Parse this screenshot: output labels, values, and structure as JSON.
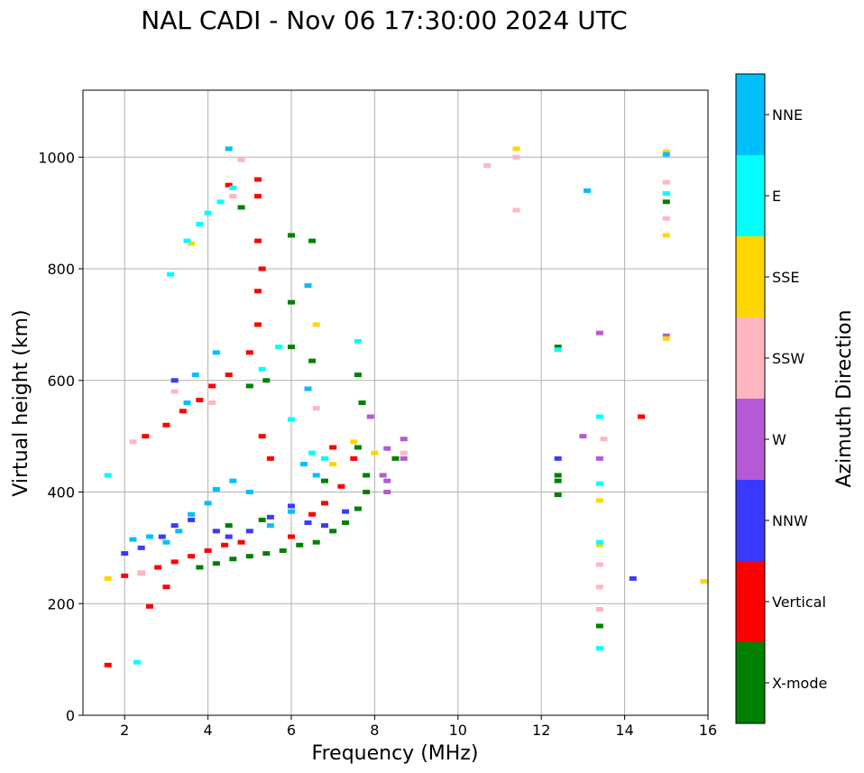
{
  "chart_data": {
    "type": "scatter",
    "title": "NAL CADI - Nov 06 17:30:00 2024 UTC",
    "xlabel": "Frequency (MHz)",
    "ylabel": "Virtual height (km)",
    "xlim": [
      1,
      16
    ],
    "ylim": [
      0,
      1120
    ],
    "xticks": [
      2,
      4,
      6,
      8,
      10,
      12,
      14,
      16
    ],
    "yticks": [
      0,
      200,
      400,
      600,
      800,
      1000
    ],
    "grid": true,
    "colorbar": {
      "label": "Azimuth Direction",
      "categories": [
        {
          "name": "X-mode",
          "color": "#008000"
        },
        {
          "name": "Vertical",
          "color": "#ff0000"
        },
        {
          "name": "NNW",
          "color": "#3a3aff"
        },
        {
          "name": "W",
          "color": "#b45ad6"
        },
        {
          "name": "SSW",
          "color": "#ffb6c1"
        },
        {
          "name": "SSE",
          "color": "#ffd700"
        },
        {
          "name": "E",
          "color": "#00ffff"
        },
        {
          "name": "NNE",
          "color": "#00bfff"
        }
      ]
    },
    "series": [
      {
        "name": "X-mode",
        "points": [
          [
            3.8,
            265
          ],
          [
            4.2,
            272
          ],
          [
            4.6,
            280
          ],
          [
            5.0,
            285
          ],
          [
            5.4,
            290
          ],
          [
            5.8,
            295
          ],
          [
            6.2,
            305
          ],
          [
            6.6,
            310
          ],
          [
            7.0,
            330
          ],
          [
            7.3,
            345
          ],
          [
            7.6,
            370
          ],
          [
            7.8,
            400
          ],
          [
            7.8,
            430
          ],
          [
            7.6,
            480
          ],
          [
            7.7,
            560
          ],
          [
            7.6,
            610
          ],
          [
            6.5,
            635
          ],
          [
            6.0,
            660
          ],
          [
            6.0,
            740
          ],
          [
            6.0,
            860
          ],
          [
            6.5,
            850
          ],
          [
            5.0,
            590
          ],
          [
            5.4,
            600
          ],
          [
            4.8,
            910
          ],
          [
            12.4,
            395
          ],
          [
            12.4,
            420
          ],
          [
            12.4,
            430
          ],
          [
            12.4,
            660
          ],
          [
            15.0,
            920
          ],
          [
            13.4,
            160
          ],
          [
            4.5,
            340
          ],
          [
            5.3,
            350
          ],
          [
            6.8,
            420
          ],
          [
            8.5,
            460
          ]
        ]
      },
      {
        "name": "Vertical",
        "points": [
          [
            1.6,
            90
          ],
          [
            2.0,
            250
          ],
          [
            2.4,
            255
          ],
          [
            2.8,
            265
          ],
          [
            3.2,
            275
          ],
          [
            3.6,
            285
          ],
          [
            4.0,
            295
          ],
          [
            4.4,
            305
          ],
          [
            4.8,
            310
          ],
          [
            3.0,
            520
          ],
          [
            3.4,
            545
          ],
          [
            3.8,
            565
          ],
          [
            4.1,
            590
          ],
          [
            4.5,
            610
          ],
          [
            5.0,
            650
          ],
          [
            5.2,
            700
          ],
          [
            5.2,
            760
          ],
          [
            5.3,
            800
          ],
          [
            5.2,
            850
          ],
          [
            5.2,
            930
          ],
          [
            5.2,
            960
          ],
          [
            4.5,
            950
          ],
          [
            2.5,
            500
          ],
          [
            3.0,
            230
          ],
          [
            2.6,
            195
          ],
          [
            5.3,
            500
          ],
          [
            5.5,
            460
          ],
          [
            6.5,
            360
          ],
          [
            6.8,
            380
          ],
          [
            7.2,
            410
          ],
          [
            7.5,
            460
          ],
          [
            7.0,
            480
          ],
          [
            14.4,
            535
          ],
          [
            6.0,
            320
          ]
        ]
      },
      {
        "name": "NNW",
        "points": [
          [
            2.0,
            290
          ],
          [
            2.4,
            300
          ],
          [
            2.9,
            320
          ],
          [
            3.2,
            340
          ],
          [
            3.6,
            350
          ],
          [
            4.2,
            330
          ],
          [
            4.5,
            320
          ],
          [
            5.0,
            330
          ],
          [
            5.5,
            355
          ],
          [
            6.0,
            375
          ],
          [
            6.4,
            345
          ],
          [
            6.8,
            340
          ],
          [
            7.3,
            365
          ],
          [
            12.4,
            460
          ],
          [
            3.2,
            600
          ],
          [
            14.2,
            245
          ]
        ]
      },
      {
        "name": "W",
        "points": [
          [
            8.2,
            430
          ],
          [
            8.3,
            478
          ],
          [
            8.7,
            495
          ],
          [
            8.7,
            460
          ],
          [
            13.0,
            500
          ],
          [
            13.4,
            460
          ],
          [
            13.4,
            685
          ],
          [
            15.0,
            680
          ],
          [
            8.3,
            400
          ],
          [
            8.3,
            420
          ],
          [
            7.9,
            535
          ]
        ]
      },
      {
        "name": "SSW",
        "points": [
          [
            2.4,
            255
          ],
          [
            2.2,
            490
          ],
          [
            3.2,
            580
          ],
          [
            4.1,
            560
          ],
          [
            4.6,
            930
          ],
          [
            4.8,
            995
          ],
          [
            6.6,
            550
          ],
          [
            10.7,
            985
          ],
          [
            11.4,
            1000
          ],
          [
            11.4,
            905
          ],
          [
            13.4,
            270
          ],
          [
            13.4,
            230
          ],
          [
            13.4,
            190
          ],
          [
            15.0,
            955
          ],
          [
            15.0,
            890
          ],
          [
            8.7,
            470
          ],
          [
            13.5,
            495
          ]
        ]
      },
      {
        "name": "SSE",
        "points": [
          [
            1.6,
            245
          ],
          [
            3.6,
            845
          ],
          [
            6.6,
            700
          ],
          [
            7.0,
            450
          ],
          [
            7.5,
            490
          ],
          [
            8.0,
            470
          ],
          [
            13.4,
            385
          ],
          [
            13.4,
            305
          ],
          [
            15.0,
            1010
          ],
          [
            15.0,
            860
          ],
          [
            15.0,
            935
          ],
          [
            15.9,
            240
          ],
          [
            11.4,
            1015
          ],
          [
            15.0,
            675
          ]
        ]
      },
      {
        "name": "E",
        "points": [
          [
            1.6,
            430
          ],
          [
            2.3,
            95
          ],
          [
            3.5,
            850
          ],
          [
            3.8,
            880
          ],
          [
            4.0,
            900
          ],
          [
            4.3,
            920
          ],
          [
            4.6,
            945
          ],
          [
            3.1,
            790
          ],
          [
            5.3,
            620
          ],
          [
            5.7,
            660
          ],
          [
            6.0,
            530
          ],
          [
            6.5,
            470
          ],
          [
            6.8,
            460
          ],
          [
            7.6,
            670
          ],
          [
            12.4,
            655
          ],
          [
            13.4,
            535
          ],
          [
            13.4,
            415
          ],
          [
            13.4,
            310
          ],
          [
            13.4,
            120
          ],
          [
            15.0,
            935
          ]
        ]
      },
      {
        "name": "NNE",
        "points": [
          [
            2.2,
            315
          ],
          [
            2.6,
            320
          ],
          [
            3.0,
            310
          ],
          [
            3.3,
            330
          ],
          [
            3.6,
            360
          ],
          [
            4.0,
            380
          ],
          [
            4.2,
            405
          ],
          [
            5.0,
            400
          ],
          [
            5.5,
            340
          ],
          [
            6.0,
            365
          ],
          [
            6.3,
            450
          ],
          [
            6.6,
            430
          ],
          [
            3.5,
            560
          ],
          [
            3.7,
            610
          ],
          [
            4.2,
            650
          ],
          [
            4.5,
            1015
          ],
          [
            6.4,
            585
          ],
          [
            6.4,
            770
          ],
          [
            13.1,
            940
          ],
          [
            15.0,
            1005
          ],
          [
            4.6,
            420
          ]
        ]
      }
    ]
  }
}
